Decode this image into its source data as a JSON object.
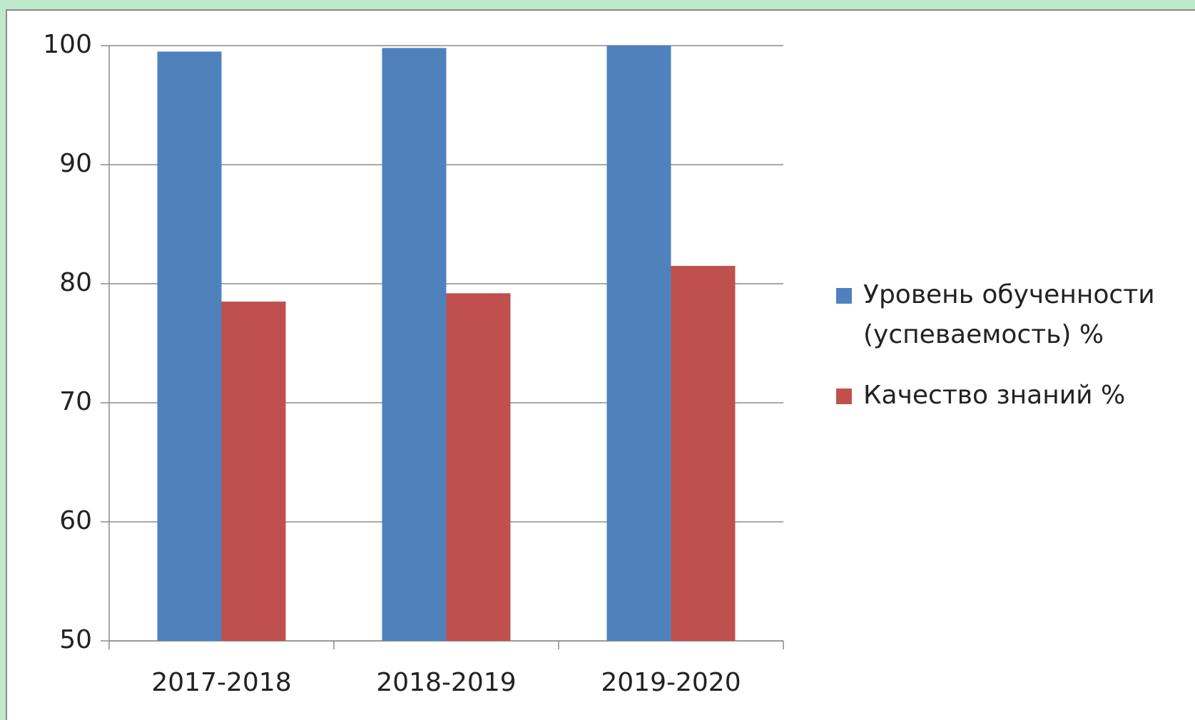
{
  "chart_data": {
    "type": "bar",
    "categories": [
      "2017-2018",
      "2018-2019",
      "2019-2020"
    ],
    "series": [
      {
        "name": "Уровень обученности (успеваемость) %",
        "color": "#4f81bd",
        "values": [
          99.5,
          99.8,
          100
        ]
      },
      {
        "name": "Качество знаний %",
        "color": "#c0504d",
        "values": [
          78.5,
          79.2,
          81.5
        ]
      }
    ],
    "ylim": [
      50,
      100
    ],
    "yticks": [
      50,
      60,
      70,
      80,
      90,
      100
    ],
    "grid": true,
    "legend": "right"
  }
}
